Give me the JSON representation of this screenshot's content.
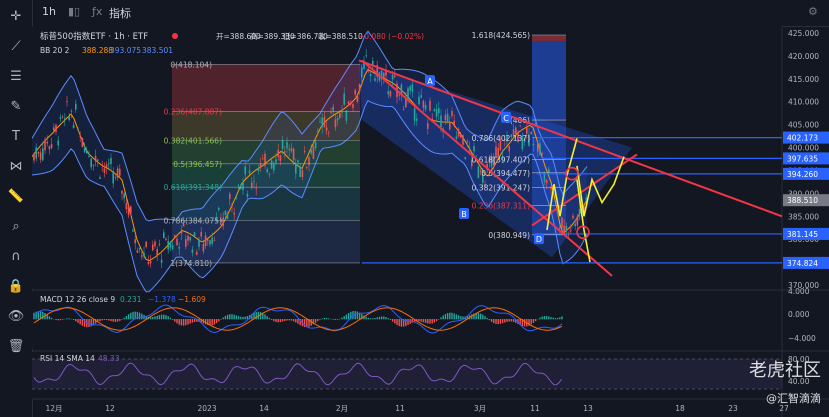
{
  "toolbar": {
    "icons": [
      "crosshair-icon",
      "trend-line-icon",
      "horizontal-lines-icon",
      "brush-icon",
      "text-icon",
      "pattern-icon",
      "ruler-icon",
      "zoom-icon",
      "magnet-icon",
      "lock-icon",
      "eye-icon",
      "trash-icon"
    ]
  },
  "topbar": {
    "timeframe": "1h",
    "indicators_label": "指标"
  },
  "header": {
    "symbol": "标普500指数ETF · 1h · ETF",
    "open_label": "开=388.600",
    "high_label": "高=389.330",
    "low_label": "低=386.730",
    "close_label": "收=388.510",
    "change_label": "−0.080 (−0.02%)"
  },
  "bb_legend": {
    "name": "BB 20 2",
    "v1": "388.288",
    "v2": "393.075",
    "v3": "383.501"
  },
  "macd_legend": {
    "name": "MACD 12 26 close 9",
    "v1": "0.231",
    "v2": "−1.378",
    "v3": "−1.609"
  },
  "rsi_legend": {
    "name": "RSI 14 SMA 14",
    "v1": "48.33"
  },
  "watermark": {
    "brand": "老虎社区",
    "author": "@汇智滴滴"
  },
  "chart_data": {
    "type": "line",
    "price_axis": {
      "ticks": [
        "425.000",
        "420.000",
        "415.000",
        "410.000",
        "405.000",
        "400.000",
        "395.000",
        "390.000",
        "385.000",
        "380.000",
        "375.000",
        "370.000"
      ],
      "ylim": [
        370,
        425
      ]
    },
    "time_axis": {
      "ticks": [
        "12月",
        "12",
        "2023",
        "14",
        "2月",
        "11",
        "3月",
        "11",
        "13",
        "18",
        "23",
        "27"
      ]
    },
    "price_labels": [
      {
        "value": 402.173,
        "text": "402.173",
        "color": "#2962ff"
      },
      {
        "value": 397.635,
        "text": "397.635",
        "color": "#2962ff"
      },
      {
        "value": 394.26,
        "text": "394.260",
        "color": "#2962ff"
      },
      {
        "value": 388.51,
        "text": "388.510",
        "color": "#787b86"
      },
      {
        "value": 381.145,
        "text": "381.145",
        "color": "#2962ff"
      },
      {
        "value": 374.824,
        "text": "374.824",
        "color": "#2962ff"
      }
    ],
    "fib_retracement_1": {
      "levels": [
        {
          "ratio": "0",
          "price": 418.104,
          "text": "0(418.104)"
        },
        {
          "ratio": "0.236",
          "price": 407.887,
          "text": "0.236(407.887)"
        },
        {
          "ratio": "0.382",
          "price": 401.566,
          "text": "0.382(401.566)"
        },
        {
          "ratio": "0.5",
          "price": 396.457,
          "text": "0.5(396.457)"
        },
        {
          "ratio": "0.618",
          "price": 391.348,
          "text": "0.618(391.348)"
        },
        {
          "ratio": "0.786",
          "price": 384.075,
          "text": "0.786(384.075)"
        },
        {
          "ratio": "1",
          "price": 374.81,
          "text": "1(374.810)"
        }
      ]
    },
    "fib_retracement_2": {
      "levels": [
        {
          "ratio": "1.618",
          "price": 424.565,
          "text": "1.618(424.565)"
        },
        {
          "ratio": "1",
          "price": 406,
          "text": "1(406)"
        },
        {
          "ratio": "0.786",
          "price": 402.137,
          "text": "0.786(402.137)"
        },
        {
          "ratio": "0.618",
          "price": 397.407,
          "text": "0.618(397.407)"
        },
        {
          "ratio": "0.5",
          "price": 394.477,
          "text": "0.5(394.477)"
        },
        {
          "ratio": "0.382",
          "price": 391.247,
          "text": "0.382(391.247)"
        },
        {
          "ratio": "0.236",
          "price": 387.311,
          "text": "0.236(387.311)"
        },
        {
          "ratio": "0",
          "price": 380.949,
          "text": "0(380.949)"
        }
      ]
    },
    "wave_labels": [
      "A",
      "B",
      "C",
      "D"
    ],
    "macd_axis": {
      "ticks": [
        "4.000",
        "0.000",
        "−4.000"
      ]
    },
    "rsi_axis": {
      "ticks": [
        "80.00",
        "40.00"
      ]
    },
    "colors": {
      "up": "#26a69a",
      "down": "#ef5350",
      "bb": "#2962ff",
      "trend": "#f23645",
      "forecast": "#f5f12b"
    }
  }
}
